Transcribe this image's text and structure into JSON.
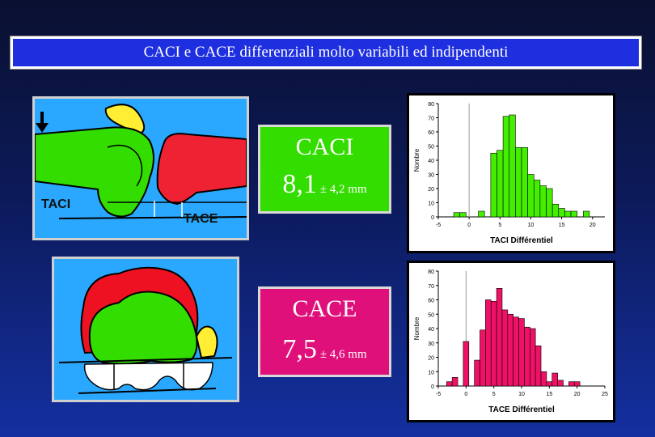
{
  "title": "CACI e CACE differenziali molto variabili ed indipendenti",
  "illustrations": {
    "caci_label": "TACI",
    "cace_label": "TACE"
  },
  "stats": [
    {
      "name": "CACI",
      "mean": "8,1",
      "sd": "± 4,2 mm",
      "color": "#33dd00"
    },
    {
      "name": "CACE",
      "mean": "7,5",
      "sd": "± 4,6 mm",
      "color": "#e0107a"
    }
  ],
  "chart_data": [
    {
      "type": "bar",
      "xlabel": "TACI Différentiel",
      "ylabel": "Nombre",
      "ylim": [
        0,
        80
      ],
      "xlim": [
        -5,
        22
      ],
      "yticks": [
        0,
        10,
        20,
        30,
        40,
        50,
        60,
        70,
        80
      ],
      "xticks": [
        -5,
        0,
        5,
        10,
        15,
        20
      ],
      "bar_color": "#44ee00",
      "bar_width": 1,
      "x": [
        -2,
        -1,
        0,
        1,
        2,
        3,
        4,
        5,
        6,
        7,
        8,
        9,
        10,
        11,
        12,
        13,
        14,
        15,
        16,
        17,
        18,
        19,
        20
      ],
      "values": [
        3,
        3,
        0,
        0,
        4,
        0,
        45,
        47,
        71,
        72,
        49,
        49,
        30,
        26,
        22,
        20,
        9,
        6,
        4,
        4,
        0,
        4,
        0
      ]
    },
    {
      "type": "bar",
      "xlabel": "TACE Différentiel",
      "ylabel": "Nombre",
      "ylim": [
        0,
        80
      ],
      "xlim": [
        -5,
        25
      ],
      "yticks": [
        0,
        10,
        20,
        30,
        40,
        50,
        60,
        70,
        80
      ],
      "xticks": [
        -5,
        0,
        5,
        10,
        15,
        20,
        25
      ],
      "bar_color": "#ee1166",
      "bar_width": 1,
      "x": [
        -3,
        -2,
        -1,
        0,
        1,
        2,
        3,
        4,
        5,
        6,
        7,
        8,
        9,
        10,
        11,
        12,
        13,
        14,
        15,
        16,
        17,
        18,
        19,
        20,
        21
      ],
      "values": [
        3,
        6,
        0,
        31,
        0,
        18,
        39,
        60,
        59,
        68,
        53,
        50,
        48,
        47,
        41,
        40,
        28,
        10,
        3,
        9,
        4,
        0,
        3,
        3,
        0
      ]
    }
  ]
}
